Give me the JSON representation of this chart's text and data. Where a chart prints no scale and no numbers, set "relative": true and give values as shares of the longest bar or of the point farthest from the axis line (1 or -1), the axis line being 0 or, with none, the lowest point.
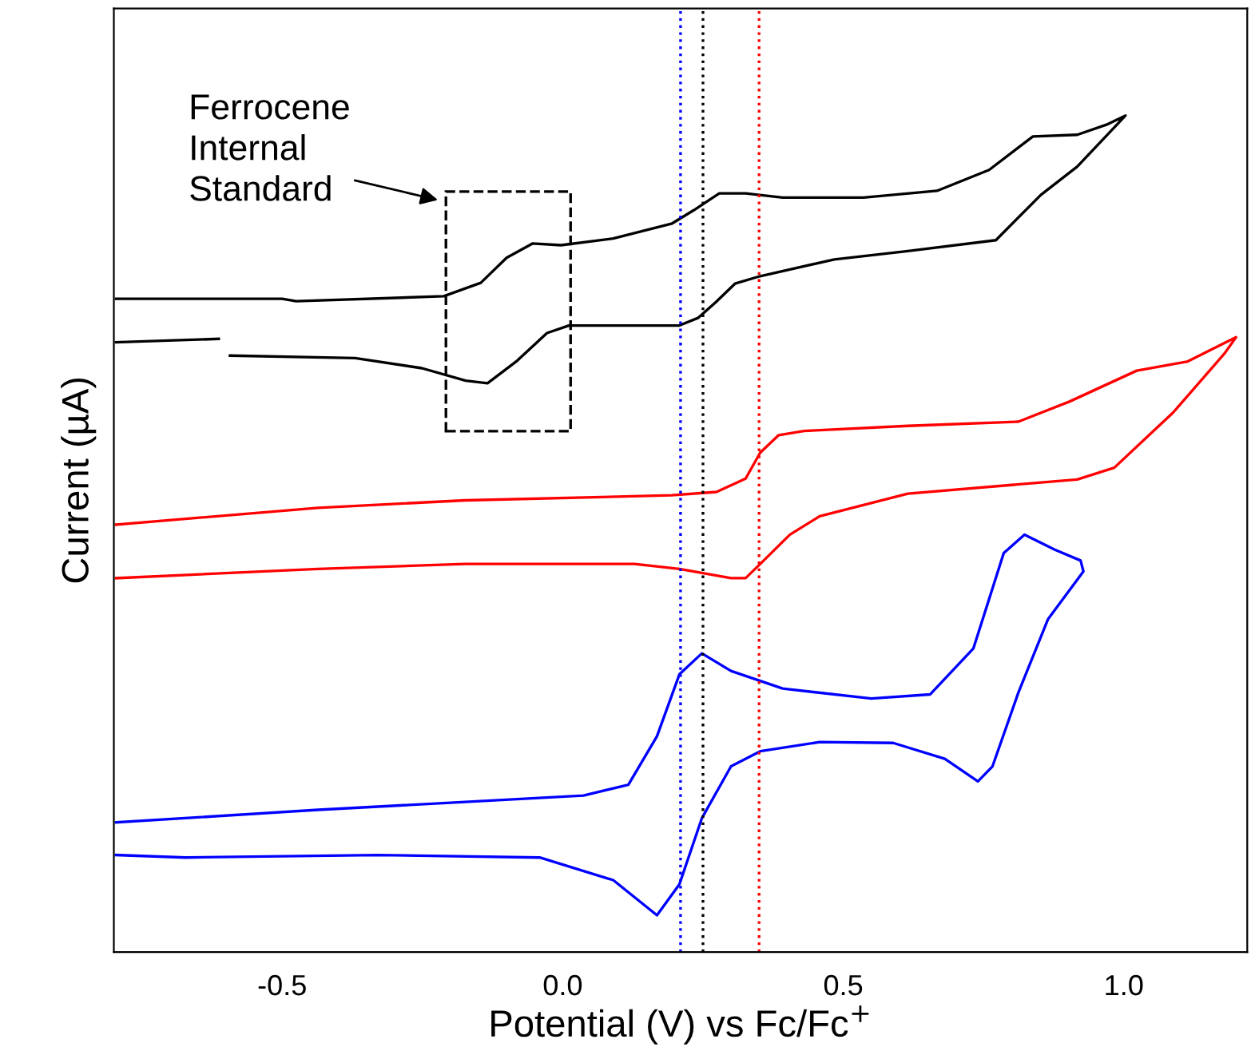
{
  "chart_data": {
    "type": "line",
    "relative": true,
    "xlabel": "Potential (V) vs Fc/Fc$^{+}$",
    "ylabel": "Current (µA)",
    "xlim": [
      -0.8,
      1.22
    ],
    "xticks": [
      {
        "value": -0.5,
        "label": "-0.5"
      },
      {
        "value": 0.0,
        "label": "0.0"
      },
      0.5,
      {
        "value": 1.0,
        "label": "1.0"
      }
    ],
    "grid": false,
    "legend": false,
    "marker": "none",
    "line_style": "solid",
    "annotations": [
      "Ferrocene\nInternal\nStandard"
    ],
    "ref_lines": [
      {
        "axis": "x",
        "value": 0.21,
        "color": "#0000ff",
        "line_style": "dotted"
      },
      {
        "axis": "x",
        "value": 0.25,
        "color": "#000000",
        "line_style": "dotted"
      },
      {
        "axis": "x",
        "value": 0.35,
        "color": "#ff0000",
        "line_style": "dotted"
      }
    ],
    "series": [
      {
        "color": "#000000",
        "x": [
          -0.796,
          -0.5,
          -0.475,
          -0.212,
          -0.146,
          -0.1,
          -0.054,
          -0.003,
          0.09,
          0.195,
          0.234,
          0.279,
          0.326,
          0.392,
          0.536,
          0.667,
          0.76,
          0.838,
          0.917,
          0.969,
          1.003,
          0.989,
          0.917,
          0.852,
          0.772,
          0.615,
          0.484,
          0.352,
          0.307,
          0.273,
          0.241,
          0.208,
          0.09,
          0.011,
          -0.028,
          -0.081,
          -0.134,
          -0.173,
          -0.251,
          -0.37,
          -0.593,
          -0.6,
          -0.613,
          -0.796
        ],
        "values": [
          0.781,
          0.781,
          0.778,
          0.784,
          0.8,
          0.83,
          0.847,
          0.845,
          0.853,
          0.871,
          0.887,
          0.907,
          0.907,
          0.902,
          0.902,
          0.91,
          0.935,
          0.975,
          0.977,
          0.989,
          1.0,
          0.99,
          0.939,
          0.905,
          0.851,
          0.838,
          0.828,
          0.808,
          0.799,
          0.777,
          0.758,
          0.749,
          0.749,
          0.749,
          0.74,
          0.707,
          0.68,
          0.683,
          0.698,
          0.71,
          0.713,
          null,
          0.733,
          0.729
        ]
      },
      {
        "color": "#ff0000",
        "x": [
          -0.796,
          -0.436,
          -0.174,
          0.194,
          0.274,
          0.326,
          0.352,
          0.385,
          0.43,
          0.615,
          0.812,
          0.903,
          1.023,
          1.114,
          1.2,
          1.18,
          1.088,
          0.983,
          0.917,
          0.615,
          0.458,
          0.405,
          0.352,
          0.326,
          0.3,
          0.208,
          0.128,
          -0.174,
          -0.436,
          -0.796
        ],
        "values": [
          0.511,
          0.531,
          0.54,
          0.546,
          0.55,
          0.566,
          0.597,
          0.618,
          0.623,
          0.629,
          0.634,
          0.658,
          0.695,
          0.706,
          0.735,
          0.716,
          0.645,
          0.579,
          0.565,
          0.548,
          0.521,
          0.499,
          0.464,
          0.447,
          0.447,
          0.458,
          0.464,
          0.464,
          0.458,
          0.447
        ]
      },
      {
        "color": "#0000ff",
        "x": [
          -0.796,
          -0.436,
          0.037,
          0.117,
          0.168,
          0.208,
          0.248,
          0.3,
          0.392,
          0.55,
          0.655,
          0.732,
          0.786,
          0.823,
          0.877,
          0.923,
          0.928,
          0.865,
          0.812,
          0.766,
          0.74,
          0.681,
          0.589,
          0.458,
          0.352,
          0.3,
          0.248,
          0.208,
          0.168,
          0.09,
          -0.041,
          -0.33,
          -0.672,
          -0.796
        ],
        "values": [
          0.155,
          0.17,
          0.187,
          0.2,
          0.258,
          0.332,
          0.357,
          0.336,
          0.315,
          0.303,
          0.308,
          0.363,
          0.477,
          0.499,
          0.481,
          0.468,
          0.455,
          0.398,
          0.31,
          0.222,
          0.204,
          0.231,
          0.25,
          0.251,
          0.24,
          0.222,
          0.16,
          0.081,
          0.044,
          0.086,
          0.113,
          0.116,
          0.113,
          0.116
        ]
      }
    ]
  }
}
